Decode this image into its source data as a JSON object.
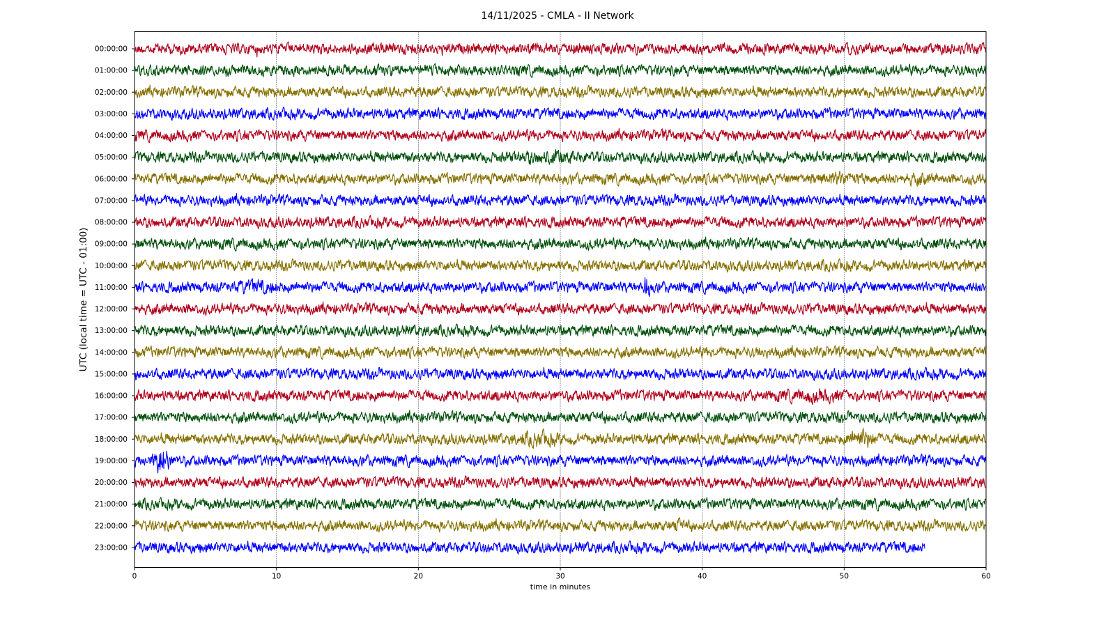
{
  "chart_data": {
    "type": "line",
    "title": "14/11/2025 - CMLA - II Network",
    "xlabel": "time in minutes",
    "ylabel": "UTC (local time = UTC - 01:00)",
    "xlim": [
      0,
      60
    ],
    "x_ticks": [
      "0",
      "10",
      "20",
      "30",
      "40",
      "50",
      "60"
    ],
    "x_tick_values": [
      0,
      10,
      20,
      30,
      40,
      50,
      60
    ],
    "grid": "vertical dotted",
    "colors": [
      "#b0001a",
      "#00500a",
      "#857000",
      "#0000ff"
    ],
    "series": [
      {
        "hour": "00:00:00",
        "end_minute": 60,
        "events": []
      },
      {
        "hour": "01:00:00",
        "end_minute": 60,
        "events": []
      },
      {
        "hour": "02:00:00",
        "end_minute": 60,
        "events": []
      },
      {
        "hour": "03:00:00",
        "end_minute": 60,
        "events": []
      },
      {
        "hour": "04:00:00",
        "end_minute": 60,
        "events": []
      },
      {
        "hour": "05:00:00",
        "end_minute": 60,
        "events": [
          {
            "minute": 29,
            "amp": 1.5,
            "width": 3
          }
        ]
      },
      {
        "hour": "06:00:00",
        "end_minute": 60,
        "events": [
          {
            "minute": 49.5,
            "amp": 1.5,
            "width": 2
          },
          {
            "minute": 55,
            "amp": 1.3,
            "width": 1.5
          }
        ]
      },
      {
        "hour": "07:00:00",
        "end_minute": 60,
        "events": []
      },
      {
        "hour": "08:00:00",
        "end_minute": 60,
        "events": []
      },
      {
        "hour": "09:00:00",
        "end_minute": 60,
        "events": []
      },
      {
        "hour": "10:00:00",
        "end_minute": 60,
        "events": []
      },
      {
        "hour": "11:00:00",
        "end_minute": 60,
        "events": [
          {
            "minute": 8.5,
            "amp": 1.5,
            "width": 2
          },
          {
            "minute": 36.1,
            "amp": 3.2,
            "width": 0.3
          }
        ]
      },
      {
        "hour": "12:00:00",
        "end_minute": 60,
        "events": []
      },
      {
        "hour": "13:00:00",
        "end_minute": 60,
        "events": []
      },
      {
        "hour": "14:00:00",
        "end_minute": 60,
        "events": []
      },
      {
        "hour": "15:00:00",
        "end_minute": 60,
        "events": []
      },
      {
        "hour": "16:00:00",
        "end_minute": 60,
        "events": [
          {
            "minute": 48,
            "amp": 1.4,
            "width": 3
          }
        ]
      },
      {
        "hour": "17:00:00",
        "end_minute": 60,
        "events": []
      },
      {
        "hour": "18:00:00",
        "end_minute": 60,
        "events": [
          {
            "minute": 28.5,
            "amp": 1.6,
            "width": 2
          },
          {
            "minute": 51.2,
            "amp": 2.2,
            "width": 1.2
          }
        ]
      },
      {
        "hour": "19:00:00",
        "end_minute": 60,
        "events": [
          {
            "minute": 1.9,
            "amp": 3.2,
            "width": 0.8
          }
        ]
      },
      {
        "hour": "20:00:00",
        "end_minute": 60,
        "events": []
      },
      {
        "hour": "21:00:00",
        "end_minute": 60,
        "events": []
      },
      {
        "hour": "22:00:00",
        "end_minute": 60,
        "events": [
          {
            "minute": 38.4,
            "amp": 1.5,
            "width": 0.6
          }
        ]
      },
      {
        "hour": "23:00:00",
        "end_minute": 55.7,
        "events": []
      }
    ]
  }
}
